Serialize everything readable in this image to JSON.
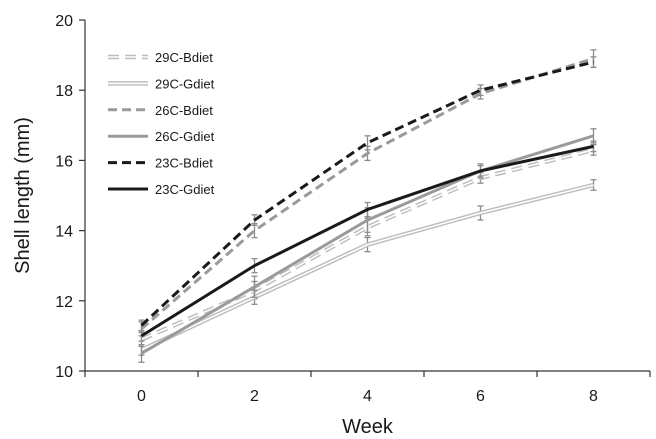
{
  "chart_data": {
    "type": "line",
    "xlabel": "Week",
    "ylabel": "Shell length (mm)",
    "x": [
      0,
      2,
      4,
      6,
      8
    ],
    "x_ticks": [
      "0",
      "2",
      "4",
      "6",
      "8"
    ],
    "xlim": [
      -1,
      9
    ],
    "y_ticks": [
      "10",
      "12",
      "14",
      "16",
      "18",
      "20"
    ],
    "ylim": [
      10,
      20
    ],
    "grid": false,
    "legend_position": "top-left",
    "series": [
      {
        "name": "29C-Bdiet",
        "values": [
          10.9,
          12.3,
          14.1,
          15.5,
          16.3
        ],
        "errors": [
          0.2,
          0.25,
          0.25,
          0.15,
          0.15
        ],
        "color": "#bdbdbd",
        "style": "double-dashed"
      },
      {
        "name": "29C-Gdiet",
        "values": [
          10.6,
          12.1,
          13.6,
          14.5,
          15.3
        ],
        "errors": [
          0.15,
          0.2,
          0.2,
          0.2,
          0.15
        ],
        "color": "#bdbdbd",
        "style": "double-solid"
      },
      {
        "name": "26C-Bdiet",
        "values": [
          11.2,
          14.0,
          16.2,
          17.9,
          18.9
        ],
        "errors": [
          0.2,
          0.2,
          0.2,
          0.15,
          0.25
        ],
        "color": "#9a9a9a",
        "style": "dashed"
      },
      {
        "name": "26C-Gdiet",
        "values": [
          10.5,
          12.4,
          14.3,
          15.7,
          16.7
        ],
        "errors": [
          0.25,
          0.3,
          0.35,
          0.2,
          0.2
        ],
        "color": "#9a9a9a",
        "style": "solid"
      },
      {
        "name": "23C-Bdiet",
        "values": [
          11.3,
          14.3,
          16.5,
          18.0,
          18.8
        ],
        "errors": [
          0.15,
          0.15,
          0.2,
          0.15,
          0.15
        ],
        "color": "#1a1a1a",
        "style": "dashed"
      },
      {
        "name": "23C-Gdiet",
        "values": [
          11.0,
          13.0,
          14.6,
          15.7,
          16.4
        ],
        "errors": [
          0.15,
          0.2,
          0.2,
          0.15,
          0.15
        ],
        "color": "#1a1a1a",
        "style": "solid"
      }
    ]
  }
}
